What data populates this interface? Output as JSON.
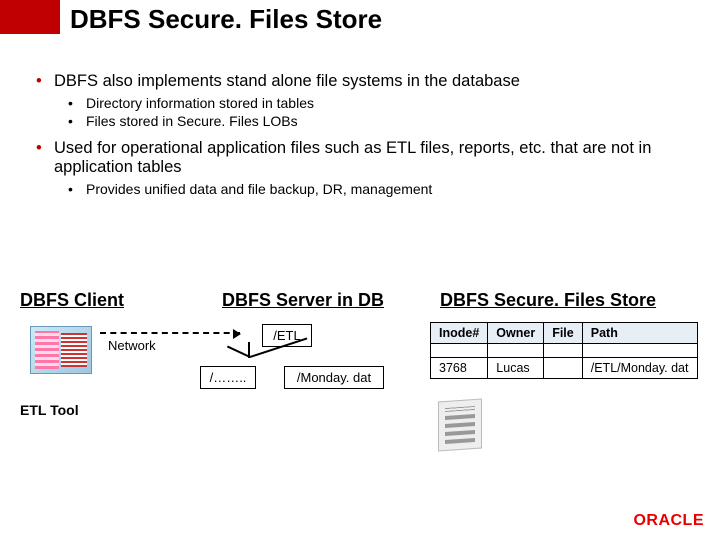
{
  "title": "DBFS Secure. Files Store",
  "bullets": {
    "b1": "DBFS also implements stand alone file systems in the database",
    "b1a": "Directory information stored in tables",
    "b1b": "Files stored in Secure. Files LOBs",
    "b2": "Used for operational application files such as ETL files, reports, etc. that are not in application tables",
    "b2a": "Provides unified data and file backup, DR, management"
  },
  "diagram": {
    "client_heading": "DBFS Client",
    "server_heading": "DBFS Server in DB",
    "store_heading": "DBFS Secure. Files Store",
    "etl_tool_label": "ETL Tool",
    "network_label": "Network",
    "node_etl": "/ETL",
    "node_dots": "/……..",
    "node_monday": "/Monday. dat"
  },
  "table": {
    "headers": [
      "Inode#",
      "Owner",
      "File",
      "Path"
    ],
    "row": {
      "inode": "3768",
      "owner": "Lucas",
      "file": "",
      "path": "/ETL/Monday. dat"
    }
  },
  "logo": "ORACLE"
}
